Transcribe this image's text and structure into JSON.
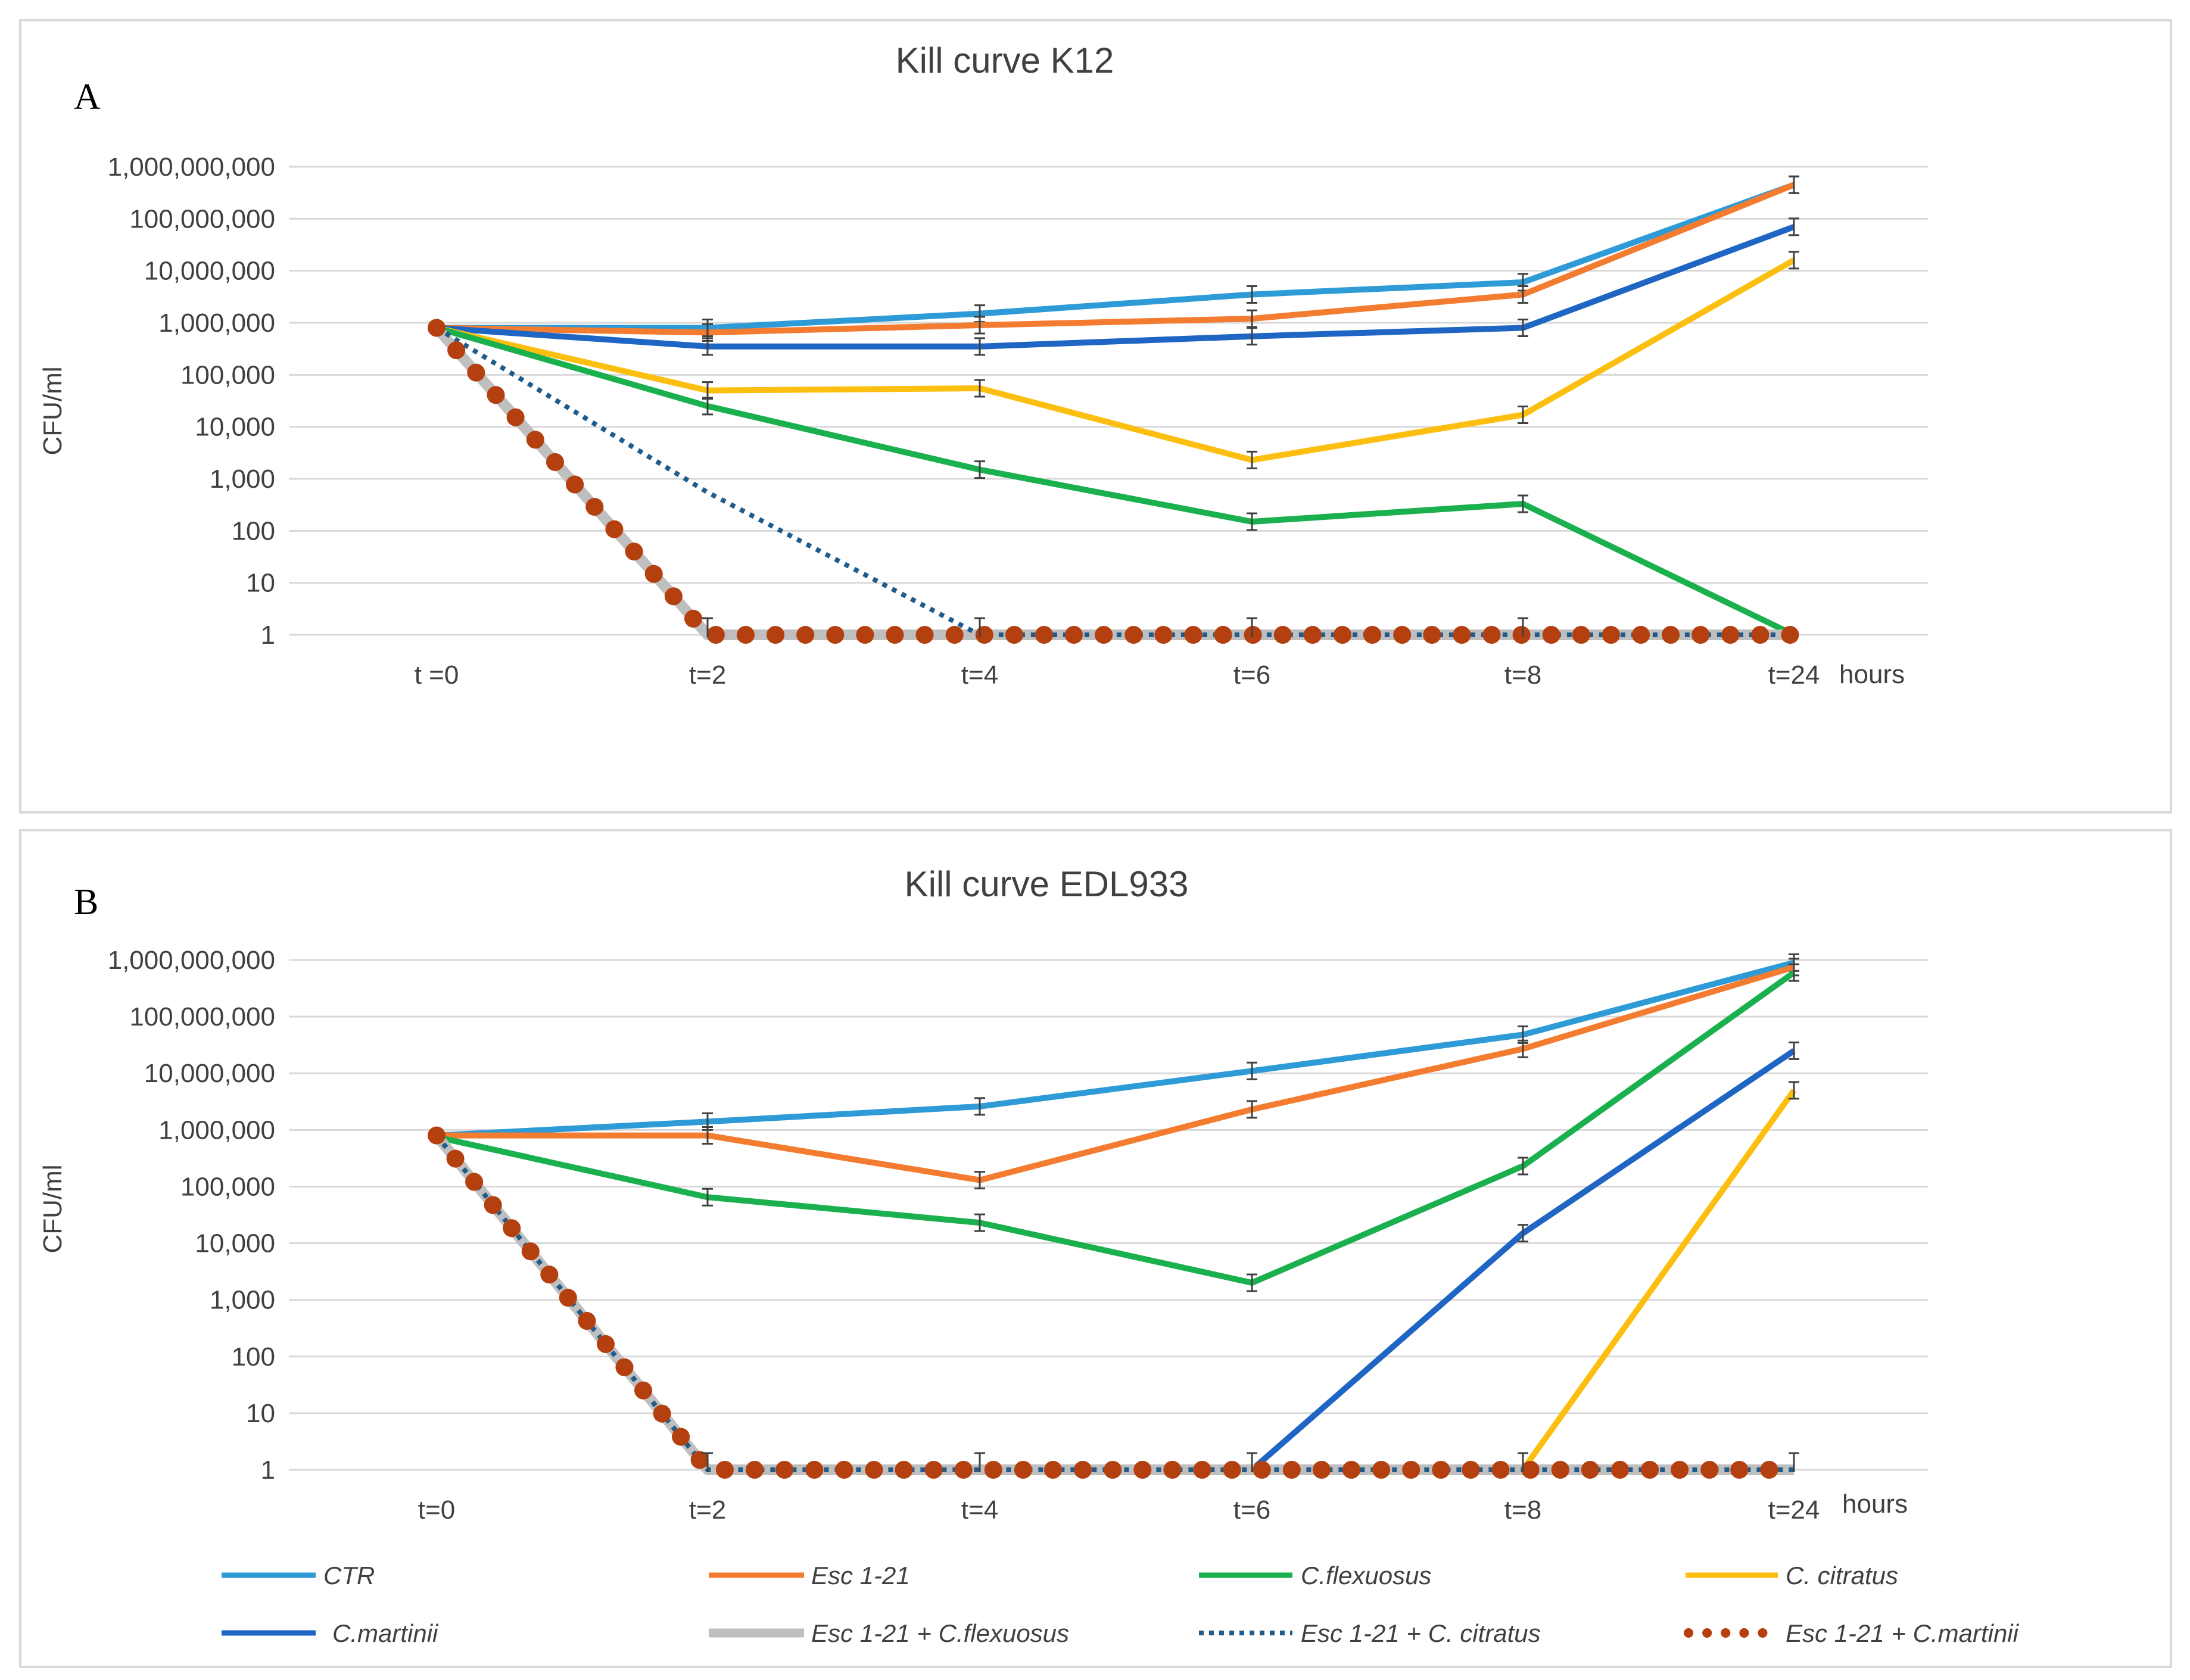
{
  "legend_items": [
    {
      "label": "CTR",
      "color": "#2E9BD6",
      "style": "solid"
    },
    {
      "label": "Esc 1-21",
      "color": "#F47C30",
      "style": "solid"
    },
    {
      "label": "C.flexuosus",
      "color": "#1BB04E",
      "style": "solid"
    },
    {
      "label": "C. citratus",
      "color": "#FCBF10",
      "style": "solid"
    },
    {
      "label": "C.martinii",
      "color": "#1F65C3",
      "style": "solid"
    },
    {
      "label": "Esc 1-21 + C.flexuosus",
      "color": "#BFBFBF",
      "style": "thick"
    },
    {
      "label": "Esc 1-21 + C. citratus",
      "color": "#1F5C8C",
      "style": "dotted"
    },
    {
      "label": "Esc 1-21 + C.martinii",
      "color": "#B5400F",
      "style": "bigdots"
    }
  ],
  "chart_data": [
    {
      "type": "line",
      "panel": "A",
      "title": "Kill curve K12",
      "xlabel": "hours",
      "ylabel": "CFU/ml",
      "yscale": "log",
      "ylim": [
        1,
        1000000000
      ],
      "yticks": [
        "1",
        "10",
        "100",
        "1,000",
        "10,000",
        "100,000",
        "1,000,000",
        "10,000,000",
        "100,000,000",
        "1,000,000,000"
      ],
      "categories": [
        "t =0",
        "t=2",
        "t=4",
        "t=6",
        "t=8",
        "t=24"
      ],
      "series": [
        {
          "name": "CTR",
          "values": [
            800000,
            800000,
            1500000,
            3500000,
            6000000,
            450000000
          ]
        },
        {
          "name": "Esc 1-21",
          "values": [
            800000,
            650000,
            900000,
            1200000,
            3500000,
            450000000
          ]
        },
        {
          "name": "C.flexuosus",
          "values": [
            800000,
            25000,
            1500,
            150,
            330,
            1
          ]
        },
        {
          "name": "C. citratus",
          "values": [
            800000,
            50000,
            55000,
            2300,
            17000,
            16000000
          ]
        },
        {
          "name": "C.martinii",
          "values": [
            800000,
            350000,
            350000,
            550000,
            800000,
            70000000
          ]
        },
        {
          "name": "Esc 1-21 + C.flexuosus",
          "values": [
            800000,
            1,
            1,
            1,
            1,
            1
          ]
        },
        {
          "name": "Esc 1-21 + C. citratus",
          "values": [
            800000,
            550,
            1,
            1,
            1,
            1
          ]
        },
        {
          "name": "Esc 1-21 + C.martinii",
          "values": [
            800000,
            1,
            1,
            1,
            1,
            1
          ]
        }
      ]
    },
    {
      "type": "line",
      "panel": "B",
      "title": "Kill curve EDL933",
      "xlabel": "hours",
      "ylabel": "CFU/ml",
      "yscale": "log",
      "ylim": [
        1,
        1000000000
      ],
      "yticks": [
        "1",
        "10",
        "100",
        "1,000",
        "10,000",
        "100,000",
        "1,000,000",
        "10,000,000",
        "100,000,000",
        "1,000,000,000"
      ],
      "categories": [
        "t=0",
        "t=2",
        "t=4",
        "t=6",
        "t=8",
        "t=24"
      ],
      "series": [
        {
          "name": "CTR",
          "values": [
            800000,
            1400000,
            2600000,
            11000000,
            48000000,
            900000000
          ]
        },
        {
          "name": "Esc 1-21",
          "values": [
            800000,
            800000,
            130000,
            2300000,
            27000000,
            750000000
          ]
        },
        {
          "name": "C.flexuosus",
          "values": [
            750000,
            65000,
            23000,
            2000,
            230000,
            600000000
          ]
        },
        {
          "name": "C. citratus",
          "values": [
            800000,
            1,
            1,
            1,
            1,
            5000000
          ]
        },
        {
          "name": "C.martinii",
          "values": [
            800000,
            1,
            1,
            1,
            15000,
            25000000
          ]
        },
        {
          "name": "Esc 1-21 + C.flexuosus",
          "values": [
            800000,
            1,
            1,
            1,
            1,
            1
          ]
        },
        {
          "name": "Esc 1-21 + C. citratus",
          "values": [
            800000,
            1,
            1,
            1,
            1,
            1
          ]
        },
        {
          "name": "Esc 1-21 + C.martinii",
          "values": [
            800000,
            1,
            1,
            1,
            1,
            1
          ]
        }
      ]
    }
  ]
}
